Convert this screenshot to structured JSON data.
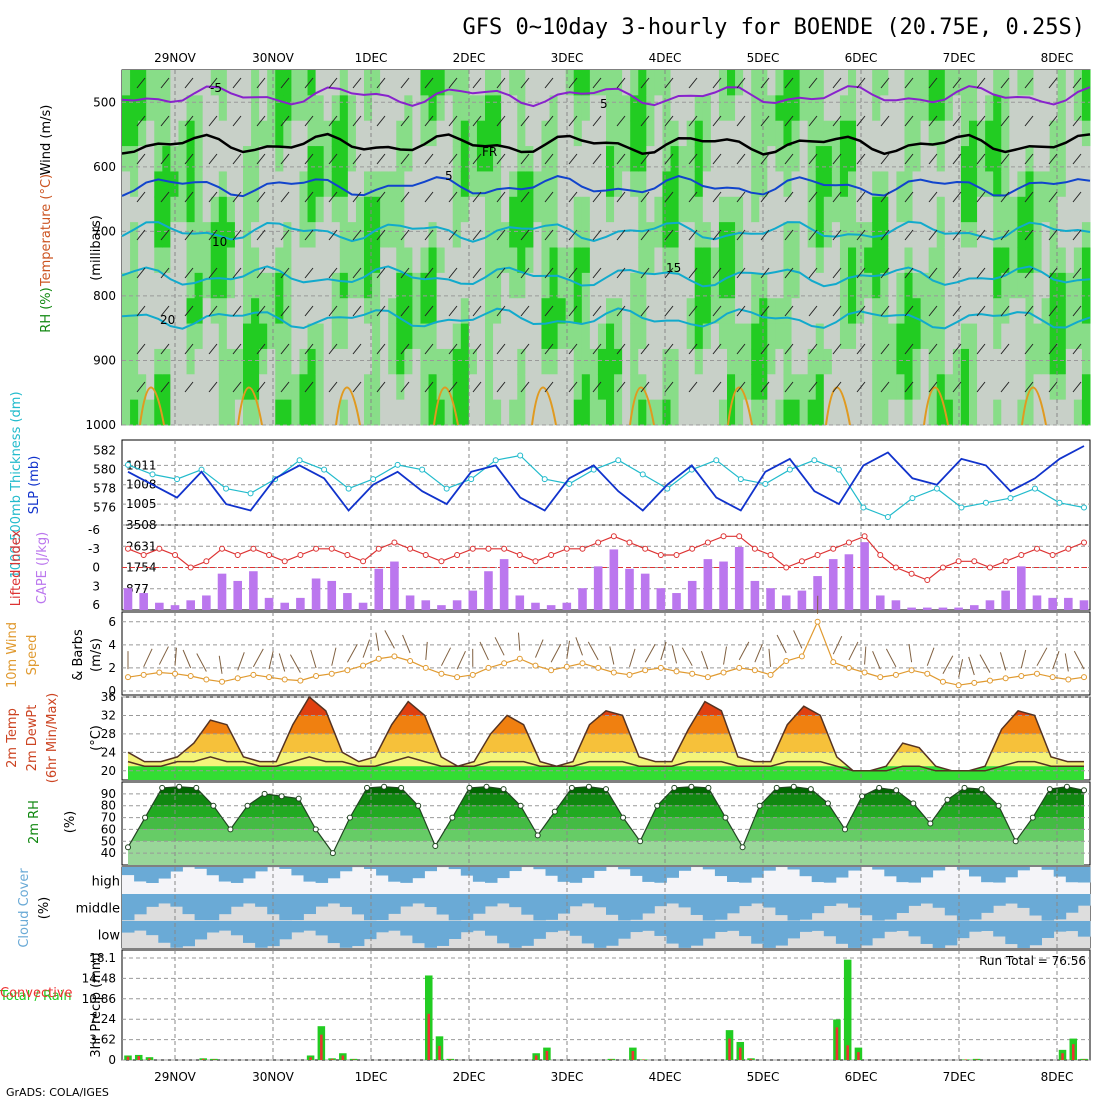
{
  "title": "GFS 0~10day 3-hourly for BOENDE (20.75E, 0.25S)",
  "footer": "GrADS: COLA/IGES",
  "colors": {
    "rh_green": "#22cc22",
    "rh_light": "#88dd88",
    "rh_grey": "#c8d0c8",
    "temp_purple": "#8822cc",
    "temp_blue": "#1144cc",
    "temp_cyan": "#11aacc",
    "temp_orange": "#e09a20",
    "slp_blue": "#1133cc",
    "thick_cyan": "#22bbcc",
    "li_red": "#dd3333",
    "cape_violet": "#bb77ee",
    "wind_orange": "#e09a30",
    "barb_brown": "#806040",
    "cloud_blue": "#6aaad6",
    "precip_green": "#22cc22",
    "precip_red": "#ee3333"
  },
  "chart_data": [
    {
      "type": "heatmap",
      "name": "upper-air",
      "ylabel_parts": [
        "Wind (m/s)",
        "Temperature (°C)",
        "RH (%)",
        "(millibars)"
      ],
      "ylabel_text": "(millibars)",
      "yticks": [
        "500",
        "600",
        "700",
        "800",
        "900",
        "1000"
      ],
      "ylim": [
        1000,
        450
      ],
      "dates": [
        "29NOV",
        "30NOV",
        "1DEC",
        "2DEC",
        "3DEC",
        "4DEC",
        "5DEC",
        "6DEC",
        "7DEC",
        "8DEC"
      ],
      "contour_labels": [
        "-5",
        "5",
        "FR",
        "5",
        "10",
        "15",
        "20"
      ],
      "isotherms": [
        {
          "label": "-5",
          "p": 490
        },
        {
          "label": "FR",
          "p": 565
        },
        {
          "label": "5",
          "p": 630
        },
        {
          "label": "10",
          "p": 700
        },
        {
          "label": "15",
          "p": 770
        },
        {
          "label": "20",
          "p": 835
        }
      ]
    },
    {
      "type": "line",
      "name": "slp-thickness",
      "ylabel_left": "1000-500mb Thickness (dm)",
      "ylabel_right": "SLP (mb)",
      "yticks_left": [
        "576",
        "578",
        "580",
        "582"
      ],
      "yticks_right": [
        "1005",
        "1008",
        "1011"
      ],
      "series": [
        {
          "name": "SLP (mb)",
          "values": [
            1010,
            1008,
            1006,
            1010,
            1005,
            1004,
            1009,
            1011,
            1009,
            1004,
            1008,
            1010,
            1007,
            1005,
            1010,
            1011,
            1006,
            1004,
            1009,
            1011,
            1007,
            1004,
            1008,
            1011,
            1006,
            1004,
            1010,
            1012,
            1007,
            1005,
            1011,
            1013,
            1009,
            1008,
            1012,
            1011,
            1007,
            1009,
            1012,
            1014
          ]
        },
        {
          "name": "Thickness (dm)",
          "values": [
            580.5,
            579.5,
            579,
            580,
            578,
            577.5,
            579,
            581,
            580,
            578,
            579,
            580.5,
            580,
            578,
            579,
            581,
            581.5,
            579,
            578.5,
            580,
            581,
            579.5,
            578,
            580,
            581,
            579,
            578.5,
            580,
            581,
            580,
            576,
            575,
            577,
            578,
            576,
            576.5,
            577,
            578,
            576.5,
            576
          ]
        }
      ]
    },
    {
      "type": "bar",
      "name": "cape-li",
      "ylabel_left": "Lifted Index",
      "ylabel_right": "CAPE (J/kg)",
      "yticks_left": [
        "-6",
        "-3",
        "0",
        "3",
        "6"
      ],
      "yticks_right": [
        "877",
        "1754",
        "2631",
        "3508"
      ],
      "ylim_right": [
        0,
        3508
      ],
      "series": [
        {
          "name": "CAPE (J/kg)",
          "values": [
            900,
            700,
            300,
            200,
            400,
            600,
            1500,
            1200,
            1600,
            500,
            300,
            500,
            1300,
            1200,
            700,
            300,
            1700,
            2000,
            600,
            400,
            200,
            400,
            800,
            1600,
            2100,
            600,
            300,
            200,
            300,
            900,
            1800,
            2500,
            1700,
            1500,
            900,
            700,
            1200,
            2100,
            2000,
            2600,
            1200,
            900,
            600,
            800,
            1400,
            2100,
            2300,
            2800,
            600,
            400,
            100,
            100,
            100,
            100,
            200,
            400,
            800,
            1800,
            600,
            500,
            500,
            400
          ]
        },
        {
          "name": "Lifted Index",
          "values": [
            -3,
            -2,
            -3,
            -2,
            0,
            -1,
            -3,
            -2,
            -3,
            -2,
            -1,
            -2,
            -3,
            -3,
            -2,
            -1,
            -3,
            -4,
            -3,
            -2,
            -1,
            -2,
            -3,
            -3,
            -3,
            -2,
            -1,
            -2,
            -3,
            -3,
            -4,
            -5,
            -4,
            -3,
            -2,
            -2,
            -3,
            -4,
            -5,
            -5,
            -3,
            -2,
            0,
            -1,
            -2,
            -3,
            -4,
            -5,
            -2,
            0,
            1,
            2,
            0,
            -1,
            -1,
            0,
            -1,
            -2,
            -3,
            -2,
            -3,
            -4
          ]
        }
      ]
    },
    {
      "type": "line",
      "name": "wind10m",
      "ylabel_parts": [
        "10m Wind",
        "Speed",
        "& Barbs",
        "(m/s)"
      ],
      "ylabel": "(m/s)",
      "yticks": [
        "0",
        "2",
        "4",
        "6"
      ],
      "ylim": [
        0,
        6.5
      ],
      "series": [
        {
          "name": "Speed",
          "values": [
            1.2,
            1.4,
            1.6,
            1.5,
            1.3,
            1.0,
            0.8,
            1.1,
            1.4,
            1.2,
            1.0,
            0.9,
            1.3,
            1.5,
            1.8,
            2.2,
            2.8,
            3.0,
            2.6,
            2.0,
            1.5,
            1.2,
            1.4,
            2.0,
            2.4,
            2.8,
            2.2,
            1.8,
            2.1,
            2.4,
            2.0,
            1.6,
            1.4,
            1.8,
            2.0,
            1.7,
            1.5,
            1.2,
            1.6,
            2.0,
            1.8,
            1.4,
            2.6,
            3.0,
            6.0,
            2.5,
            2.0,
            1.6,
            1.2,
            1.4,
            1.8,
            1.5,
            0.8,
            0.5,
            0.7,
            0.9,
            1.1,
            1.3,
            1.5,
            1.2,
            1.0,
            1.2
          ]
        }
      ]
    },
    {
      "type": "area",
      "name": "temp2m",
      "ylabel_parts": [
        "2m Temp",
        "2m DewPt",
        "(6hr Min/Max)",
        "(°C)"
      ],
      "ylabel": "(°C)",
      "yticks": [
        "20",
        "24",
        "28",
        "32",
        "36"
      ],
      "ylim": [
        18,
        36
      ],
      "series": [
        {
          "name": "2m Temp",
          "values": [
            24,
            22,
            22,
            23,
            26,
            31,
            30,
            23,
            22,
            22,
            30,
            36,
            33,
            24,
            22,
            23,
            30,
            35,
            32,
            23,
            21,
            22,
            28,
            32,
            30,
            22,
            21,
            22,
            30,
            33,
            32,
            23,
            22,
            22,
            29,
            35,
            33,
            23,
            22,
            22,
            30,
            34,
            32,
            23,
            20,
            20,
            21,
            26,
            25,
            21,
            20,
            20,
            21,
            29,
            33,
            32,
            23,
            22,
            22
          ]
        },
        {
          "name": "2m DewPt",
          "values": [
            22,
            21,
            21,
            22,
            22,
            23,
            22,
            22,
            21,
            21,
            22,
            23,
            22,
            22,
            21,
            21,
            22,
            23,
            22,
            21,
            21,
            21,
            22,
            22,
            22,
            21,
            21,
            21,
            22,
            22,
            22,
            21,
            21,
            21,
            22,
            22,
            22,
            21,
            21,
            21,
            22,
            22,
            22,
            21,
            20,
            20,
            20,
            21,
            21,
            20,
            20,
            20,
            20,
            21,
            22,
            22,
            21,
            21,
            21
          ]
        }
      ]
    },
    {
      "type": "area",
      "name": "rh2m",
      "ylabel": "2m RH",
      "yunit": "(%)",
      "yticks": [
        "40",
        "50",
        "60",
        "70",
        "80",
        "90"
      ],
      "ylim": [
        30,
        100
      ],
      "series": [
        {
          "name": "2m RH",
          "values": [
            45,
            70,
            95,
            96,
            95,
            80,
            60,
            80,
            90,
            88,
            86,
            60,
            40,
            70,
            95,
            96,
            95,
            80,
            46,
            70,
            95,
            96,
            94,
            80,
            55,
            75,
            95,
            96,
            94,
            70,
            50,
            80,
            95,
            96,
            95,
            70,
            45,
            80,
            95,
            96,
            94,
            82,
            60,
            88,
            95,
            93,
            82,
            65,
            85,
            95,
            94,
            80,
            50,
            70,
            94,
            96,
            93
          ]
        }
      ]
    },
    {
      "type": "heatmap",
      "name": "cloud",
      "ylabel": "Cloud Cover",
      "yunit": "(%)",
      "rows": [
        "high",
        "middle",
        "low"
      ]
    },
    {
      "type": "bar",
      "name": "precip",
      "ylabel_left": "Total / Rain",
      "ylabel_left2": "Convective",
      "ylabel": "3hr Precip (mm)",
      "yticks": [
        "0",
        "3.62",
        "7.24",
        "10.86",
        "14.48",
        "18.1"
      ],
      "ylim": [
        0,
        18.1
      ],
      "annotation": "Run Total = 76.56",
      "series": [
        {
          "name": "Total",
          "values": [
            0.8,
            0.9,
            0.5,
            0,
            0,
            0,
            0,
            0.3,
            0.2,
            0,
            0,
            0,
            0,
            0,
            0,
            0,
            0,
            0.8,
            6.0,
            0.3,
            1.2,
            0.2,
            0,
            0,
            0,
            0,
            0,
            0,
            15.0,
            4.2,
            0.2,
            0,
            0,
            0,
            0,
            0,
            0,
            0,
            1.2,
            2.2,
            0,
            0,
            0,
            0,
            0,
            0.2,
            0,
            2.2,
            0.1,
            0,
            0,
            0,
            0,
            0,
            0,
            0,
            5.3,
            3.2,
            0.3,
            0,
            0,
            0,
            0,
            0,
            0,
            0,
            7.2,
            17.8,
            2.2,
            0,
            0,
            0,
            0,
            0,
            0,
            0,
            0,
            0,
            0.1,
            0.2,
            0,
            0,
            0,
            0,
            0,
            0,
            0,
            1.8,
            3.8,
            0.2
          ]
        },
        {
          "name": "Convective",
          "values": [
            0.6,
            0.7,
            0.3,
            0,
            0,
            0,
            0,
            0.2,
            0.1,
            0,
            0,
            0,
            0,
            0,
            0,
            0,
            0,
            0.5,
            4.5,
            0.2,
            0.8,
            0.1,
            0,
            0,
            0,
            0,
            0,
            0,
            8.2,
            2.5,
            0.1,
            0,
            0,
            0,
            0,
            0,
            0,
            0,
            0.8,
            1.6,
            0,
            0,
            0,
            0,
            0,
            0.1,
            0,
            1.6,
            0.1,
            0,
            0,
            0,
            0,
            0,
            0,
            0,
            3.8,
            2.2,
            0.2,
            0,
            0,
            0,
            0,
            0,
            0,
            0,
            5.8,
            2.6,
            1.4,
            0,
            0,
            0,
            0,
            0,
            0,
            0,
            0,
            0,
            0.1,
            0.1,
            0,
            0,
            0,
            0,
            0,
            0,
            0,
            1.2,
            2.8,
            0.1
          ]
        }
      ]
    }
  ]
}
